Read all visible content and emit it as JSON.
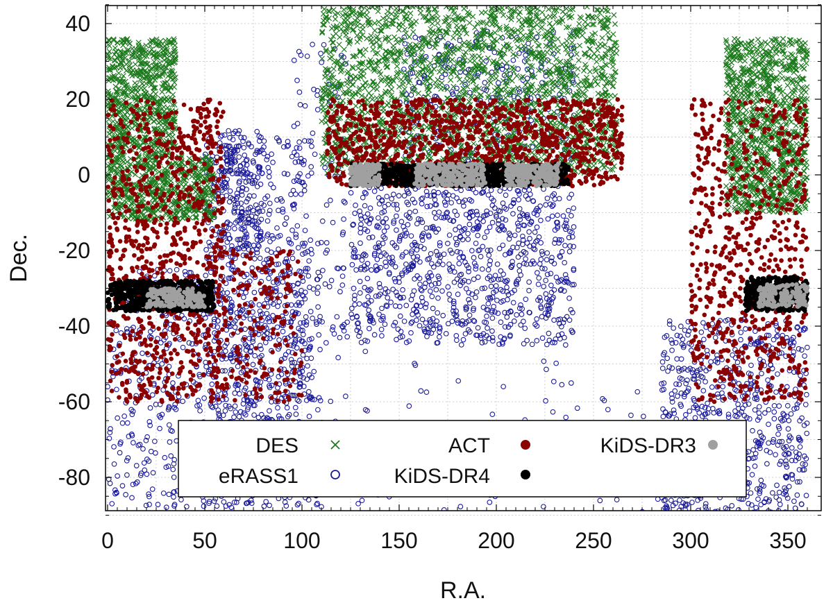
{
  "chart_data": {
    "type": "scatter",
    "title": "",
    "xlabel": "R.A.",
    "ylabel": "Dec.",
    "xlim": [
      0,
      360
    ],
    "ylim": [
      -90,
      45
    ],
    "xticks": [
      0,
      50,
      100,
      150,
      200,
      250,
      300,
      350
    ],
    "yticks": [
      -80,
      -60,
      -40,
      -20,
      0,
      20,
      40
    ],
    "xtick_labels": [
      "0",
      "50",
      "100",
      "150",
      "200",
      "250",
      "300",
      "350"
    ],
    "ytick_labels": [
      "-80",
      "-60",
      "-40",
      "-20",
      "0",
      "20",
      "40"
    ],
    "grid": true,
    "legend_position": "bottom-center",
    "series": [
      {
        "name": "eRASS1",
        "marker": "open-circle",
        "color": "#1a1a9a",
        "regions": [
          {
            "ra": [
              0,
              110
            ],
            "dec": [
              -88,
              -25
            ],
            "density": 700
          },
          {
            "ra": [
              50,
              105
            ],
            "dec": [
              -65,
              10
            ],
            "density": 550
          },
          {
            "ra": [
              58,
              80
            ],
            "dec": [
              -20,
              12
            ],
            "density": 160
          },
          {
            "ra": [
              95,
              125
            ],
            "dec": [
              -45,
              38
            ],
            "density": 110
          },
          {
            "ra": [
              125,
              240
            ],
            "dec": [
              -45,
              -3
            ],
            "density": 900
          },
          {
            "ra": [
              150,
              240
            ],
            "dec": [
              -3,
              38
            ],
            "density": 320
          },
          {
            "ra": [
              100,
              250
            ],
            "dec": [
              -90,
              -45
            ],
            "density": 70
          },
          {
            "ra": [
              250,
              300
            ],
            "dec": [
              -90,
              -55
            ],
            "density": 40
          },
          {
            "ra": [
              285,
              360
            ],
            "dec": [
              -90,
              -38
            ],
            "density": 650
          }
        ]
      },
      {
        "name": "DES",
        "marker": "x",
        "color": "#1e7a1e",
        "regions": [
          {
            "ra": [
              0,
              35
            ],
            "dec": [
              -12,
              36
            ],
            "density": 1100
          },
          {
            "ra": [
              35,
              55
            ],
            "dec": [
              -12,
              5
            ],
            "density": 250
          },
          {
            "ra": [
              110,
              262
            ],
            "dec": [
              0,
              45
            ],
            "density": 2200
          },
          {
            "ra": [
              318,
              360
            ],
            "dec": [
              -10,
              36
            ],
            "density": 1100
          }
        ]
      },
      {
        "name": "ACT",
        "marker": "filled-circle",
        "color": "#8b0000",
        "regions": [
          {
            "ra": [
              0,
              60
            ],
            "dec": [
              -60,
              20
            ],
            "density": 900
          },
          {
            "ra": [
              55,
              100
            ],
            "dec": [
              -60,
              -20
            ],
            "density": 200
          },
          {
            "ra": [
              113,
              265
            ],
            "dec": [
              -3,
              20
            ],
            "density": 1200
          },
          {
            "ra": [
              300,
              360
            ],
            "dec": [
              -60,
              20
            ],
            "density": 700
          }
        ]
      },
      {
        "name": "KiDS-DR4",
        "marker": "filled-circle",
        "color": "#000000",
        "regions": [
          {
            "ra": [
              0,
              55
            ],
            "dec": [
              -36,
              -28
            ],
            "density": 600
          },
          {
            "ra": [
              328,
              360
            ],
            "dec": [
              -36,
              -27
            ],
            "density": 400
          },
          {
            "ra": [
              125,
              237
            ],
            "dec": [
              -3,
              3
            ],
            "density": 900
          }
        ]
      },
      {
        "name": "KiDS-DR3",
        "marker": "filled-circle",
        "color": "#a0a0a0",
        "regions": [
          {
            "ra": [
              20,
              50
            ],
            "dec": [
              -35,
              -30
            ],
            "density": 160
          },
          {
            "ra": [
              335,
              360
            ],
            "dec": [
              -35,
              -29
            ],
            "density": 150
          },
          {
            "ra": [
              125,
              140
            ],
            "dec": [
              -3,
              3
            ],
            "density": 140
          },
          {
            "ra": [
              158,
              195
            ],
            "dec": [
              -3,
              3
            ],
            "density": 250
          },
          {
            "ra": [
              205,
              232
            ],
            "dec": [
              -3,
              3
            ],
            "density": 200
          }
        ]
      }
    ],
    "legend": [
      {
        "label": "DES",
        "marker": "x",
        "color": "#1e7a1e"
      },
      {
        "label": "ACT",
        "marker": "filled-circle",
        "color": "#8b0000"
      },
      {
        "label": "KiDS-DR3",
        "marker": "filled-circle",
        "color": "#a0a0a0"
      },
      {
        "label": "eRASS1",
        "marker": "open-circle",
        "color": "#1a1a9a"
      },
      {
        "label": "KiDS-DR4",
        "marker": "filled-circle",
        "color": "#000000"
      }
    ]
  }
}
